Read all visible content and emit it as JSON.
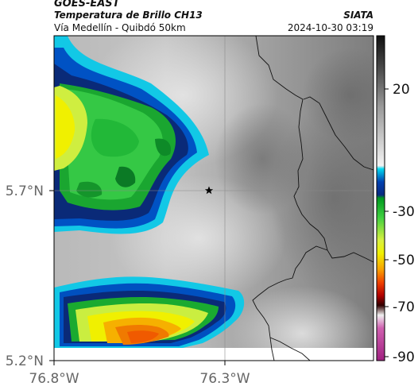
{
  "header": {
    "satellite": "GOES-EAST",
    "product": "Temperatura de Brillo CH13",
    "route": "Vía Medellín - Quibdó 50km",
    "organization": "SIATA",
    "datetime": "2024-10-30 03:19"
  },
  "map": {
    "lat_labels": [
      "5.7°N",
      "5.2°N"
    ],
    "lon_labels": [
      "76.8°W",
      "76.3°W"
    ],
    "marker": "star-icon"
  },
  "colorbar": {
    "ticks": [
      "20",
      "-30",
      "-50",
      "-70",
      "-90"
    ]
  }
}
